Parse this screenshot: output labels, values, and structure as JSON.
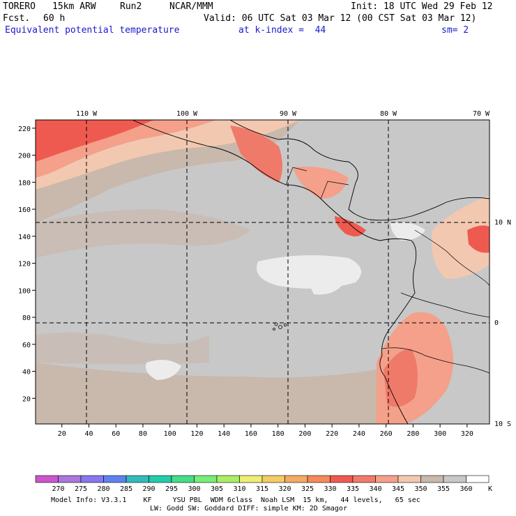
{
  "header": {
    "model": "TORERO",
    "resolution": "15km ARW",
    "run": "Run2",
    "org": "NCAR/MMM",
    "init": "Init: 18 UTC Wed 29 Feb 12",
    "fcst_label": "Fcst.",
    "fcst_value": "60 h",
    "valid": "Valid: 06 UTC Sat 03 Mar 12 (00 CST Sat 03 Mar 12)",
    "field": "Equivalent potential temperature",
    "level": "at k-index =  44",
    "smooth": "sm= 2"
  },
  "map": {
    "lon_labels": [
      "110 W",
      "100 W",
      "90 W",
      "80 W",
      "70 W"
    ],
    "lat_labels": [
      "10 N",
      "0",
      "10 S"
    ],
    "x_ticks": [
      "20",
      "40",
      "60",
      "80",
      "100",
      "120",
      "140",
      "160",
      "180",
      "200",
      "220",
      "240",
      "260",
      "280",
      "300",
      "320"
    ],
    "y_ticks": [
      "20",
      "40",
      "60",
      "80",
      "100",
      "120",
      "140",
      "160",
      "180",
      "200",
      "220"
    ],
    "colors": {
      "ocean_gray": "#c8c8c8",
      "tan": "#c9b8ac",
      "light_peach": "#f2c8b0",
      "salmon": "#f4a08a",
      "coral": "#f07a6a",
      "red": "#ef5a50",
      "white_patch": "#ececec"
    }
  },
  "colorbar": {
    "unit": "K",
    "labels": [
      "270",
      "275",
      "280",
      "285",
      "290",
      "295",
      "300",
      "305",
      "310",
      "315",
      "320",
      "325",
      "330",
      "335",
      "340",
      "345",
      "350",
      "355",
      "360"
    ],
    "colors": [
      "#cc55cc",
      "#aa77dd",
      "#8877ee",
      "#5f82ee",
      "#33bbbb",
      "#22ccaa",
      "#44dd88",
      "#77ee77",
      "#aaee66",
      "#eeee77",
      "#f4cc66",
      "#f4aa66",
      "#f48a5a",
      "#ef5a50",
      "#f07a6a",
      "#f4a08a",
      "#f2c8b0",
      "#c9b8ac",
      "#c8c8c8",
      "#ffffff"
    ]
  },
  "footer": {
    "line1": "Model Info: V3.3.1    KF     YSU PBL  WDM 6class  Noah LSM  15 km,   44 levels,   65 sec",
    "line2": "LW: Godd SW: Goddard DIFF: simple KM: 2D Smagor"
  }
}
